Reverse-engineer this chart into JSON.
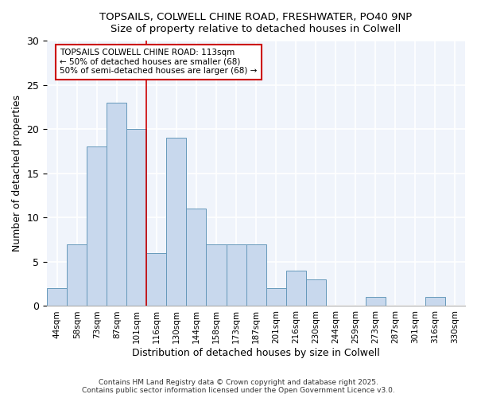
{
  "title_line1": "TOPSAILS, COLWELL CHINE ROAD, FRESHWATER, PO40 9NP",
  "title_line2": "Size of property relative to detached houses in Colwell",
  "xlabel": "Distribution of detached houses by size in Colwell",
  "ylabel": "Number of detached properties",
  "bar_labels": [
    "44sqm",
    "58sqm",
    "73sqm",
    "87sqm",
    "101sqm",
    "116sqm",
    "130sqm",
    "144sqm",
    "158sqm",
    "173sqm",
    "187sqm",
    "201sqm",
    "216sqm",
    "230sqm",
    "244sqm",
    "259sqm",
    "273sqm",
    "287sqm",
    "301sqm",
    "316sqm",
    "330sqm"
  ],
  "bar_values": [
    2,
    7,
    18,
    23,
    20,
    6,
    19,
    11,
    7,
    7,
    7,
    2,
    4,
    3,
    0,
    0,
    1,
    0,
    0,
    1,
    0
  ],
  "bar_color": "#c8d8ed",
  "bar_edgecolor": "#6699bb",
  "background_color": "#ffffff",
  "plot_bg_color": "#f0f4fb",
  "grid_color": "#ffffff",
  "vline_x": 5.0,
  "vline_color": "#cc0000",
  "annotation_text": "TOPSAILS COLWELL CHINE ROAD: 113sqm\n← 50% of detached houses are smaller (68)\n50% of semi-detached houses are larger (68) →",
  "annotation_box_edgecolor": "#cc0000",
  "ylim": [
    0,
    30
  ],
  "yticks": [
    0,
    5,
    10,
    15,
    20,
    25,
    30
  ],
  "footnote1": "Contains HM Land Registry data © Crown copyright and database right 2025.",
  "footnote2": "Contains public sector information licensed under the Open Government Licence v3.0."
}
